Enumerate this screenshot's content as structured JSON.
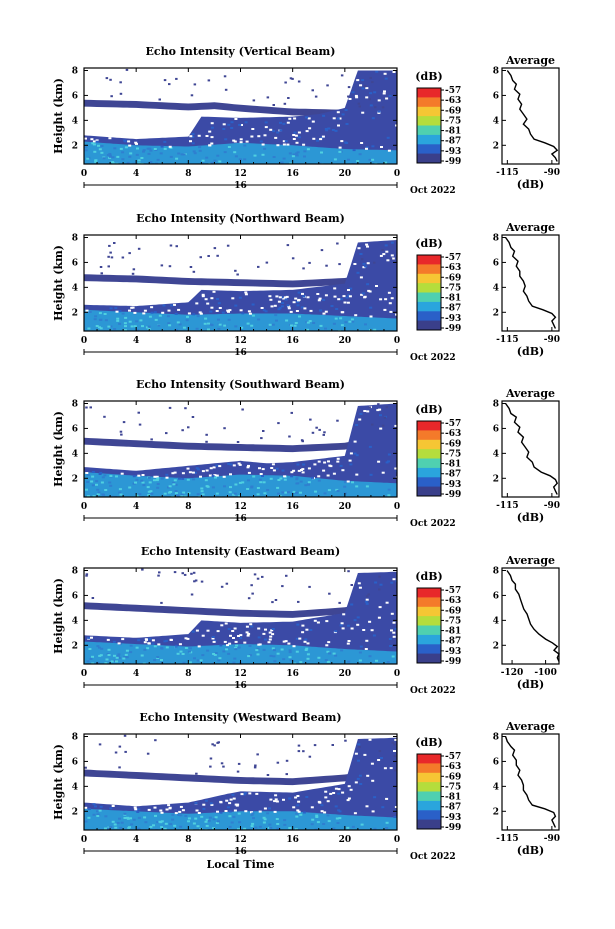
{
  "chart_data": [
    {
      "type": "heatmap",
      "title": "Echo Intensity (Vertical Beam)",
      "ylabel": "Height (km)",
      "xlabel": "",
      "x_ticks": [
        "0",
        "4",
        "8",
        "12",
        "16",
        "20",
        "0"
      ],
      "y_ticks": [
        "2",
        "4",
        "6",
        "8"
      ],
      "x_range": [
        0,
        24
      ],
      "y_range": [
        0.5,
        8.2
      ],
      "date_day": "16",
      "date_month": "Oct 2022",
      "colorbar": {
        "unit": "(dB)",
        "ticks": [
          "-57",
          "-63",
          "-69",
          "-75",
          "-81",
          "-87",
          "-93",
          "-99"
        ]
      },
      "layers": {
        "stratus_top": [
          [
            0,
            5.4
          ],
          [
            4,
            5.3
          ],
          [
            8,
            5.1
          ],
          [
            10,
            5.2
          ],
          [
            12,
            5.0
          ],
          [
            16,
            4.7
          ],
          [
            20,
            4.6
          ],
          [
            22,
            4.7
          ],
          [
            24,
            4.5
          ]
        ],
        "blob_top": [
          [
            0,
            2.8
          ],
          [
            4,
            2.5
          ],
          [
            8,
            2.7
          ],
          [
            9,
            4.3
          ],
          [
            12,
            4.2
          ],
          [
            16,
            4.3
          ],
          [
            18,
            4.5
          ],
          [
            20,
            5.0
          ],
          [
            21,
            8.0
          ],
          [
            24,
            8.0
          ]
        ],
        "bright_top": [
          [
            0,
            2.3
          ],
          [
            4,
            2.0
          ],
          [
            8,
            1.9
          ],
          [
            12,
            2.2
          ],
          [
            16,
            2.0
          ],
          [
            20,
            1.7
          ],
          [
            24,
            1.6
          ]
        ]
      },
      "average_profile": {
        "title": "Average",
        "xlabel": "(dB)",
        "x_ticks": [
          "-115",
          "-90"
        ],
        "xlim": [
          -118,
          -86
        ],
        "y_ticks": [
          "2",
          "4",
          "6",
          "8"
        ],
        "ylim": [
          0.5,
          8.2
        ],
        "heights": [
          8.0,
          7.6,
          7.2,
          6.9,
          6.5,
          6.1,
          5.7,
          5.3,
          4.9,
          4.5,
          4.1,
          3.7,
          3.3,
          2.9,
          2.5,
          2.2,
          1.9,
          1.6,
          1.3,
          1.0,
          0.7
        ],
        "values": [
          -115,
          -113,
          -112,
          -110,
          -111,
          -108,
          -109,
          -107,
          -108,
          -106,
          -104,
          -106,
          -103,
          -102,
          -100,
          -94,
          -89,
          -87,
          -90,
          -88,
          -87
        ]
      }
    },
    {
      "type": "heatmap",
      "title": "Echo Intensity (Northward Beam)",
      "ylabel": "Height (km)",
      "xlabel": "",
      "x_ticks": [
        "0",
        "4",
        "8",
        "12",
        "16",
        "20",
        "0"
      ],
      "y_ticks": [
        "2",
        "4",
        "6",
        "8"
      ],
      "x_range": [
        0,
        24
      ],
      "y_range": [
        0.5,
        8.2
      ],
      "date_day": "16",
      "date_month": "Oct 2022",
      "colorbar": {
        "unit": "(dB)",
        "ticks": [
          "-57",
          "-63",
          "-69",
          "-75",
          "-81",
          "-87",
          "-93",
          "-99"
        ]
      },
      "layers": {
        "stratus_top": [
          [
            0,
            4.8
          ],
          [
            4,
            4.7
          ],
          [
            8,
            4.5
          ],
          [
            12,
            4.4
          ],
          [
            16,
            4.3
          ],
          [
            20,
            4.5
          ],
          [
            22,
            4.9
          ],
          [
            24,
            4.4
          ]
        ],
        "blob_top": [
          [
            0,
            2.6
          ],
          [
            4,
            2.5
          ],
          [
            8,
            2.8
          ],
          [
            9,
            3.8
          ],
          [
            12,
            3.7
          ],
          [
            16,
            3.8
          ],
          [
            20,
            4.3
          ],
          [
            21,
            7.6
          ],
          [
            24,
            7.8
          ]
        ],
        "bright_top": [
          [
            0,
            2.2
          ],
          [
            4,
            2.0
          ],
          [
            8,
            1.8
          ],
          [
            12,
            1.9
          ],
          [
            16,
            1.9
          ],
          [
            20,
            1.7
          ],
          [
            24,
            1.5
          ]
        ]
      },
      "average_profile": {
        "title": "Average",
        "xlabel": "(dB)",
        "x_ticks": [
          "-115",
          "-90"
        ],
        "xlim": [
          -118,
          -86
        ],
        "y_ticks": [
          "2",
          "4",
          "6",
          "8"
        ],
        "ylim": [
          0.5,
          8.2
        ],
        "heights": [
          8.0,
          7.6,
          7.2,
          6.9,
          6.5,
          6.1,
          5.7,
          5.3,
          4.9,
          4.5,
          4.1,
          3.7,
          3.3,
          2.9,
          2.5,
          2.2,
          1.9,
          1.6,
          1.3,
          1.0,
          0.7
        ],
        "values": [
          -116,
          -114,
          -113,
          -111,
          -112,
          -109,
          -110,
          -108,
          -108,
          -106,
          -105,
          -106,
          -104,
          -103,
          -101,
          -95,
          -90,
          -88,
          -90,
          -89,
          -88
        ]
      }
    },
    {
      "type": "heatmap",
      "title": "Echo Intensity (Southward Beam)",
      "ylabel": "Height (km)",
      "xlabel": "",
      "x_ticks": [
        "0",
        "4",
        "8",
        "12",
        "16",
        "20",
        "0"
      ],
      "y_ticks": [
        "2",
        "4",
        "6",
        "8"
      ],
      "x_range": [
        0,
        24
      ],
      "y_range": [
        0.5,
        8.2
      ],
      "date_day": "16",
      "date_month": "Oct 2022",
      "colorbar": {
        "unit": "(dB)",
        "ticks": [
          "-57",
          "-63",
          "-69",
          "-75",
          "-81",
          "-87",
          "-93",
          "-99"
        ]
      },
      "layers": {
        "stratus_top": [
          [
            0,
            5.0
          ],
          [
            4,
            4.8
          ],
          [
            8,
            4.6
          ],
          [
            12,
            4.5
          ],
          [
            16,
            4.4
          ],
          [
            20,
            4.6
          ],
          [
            22,
            5.0
          ],
          [
            24,
            4.5
          ]
        ],
        "blob_top": [
          [
            0,
            2.9
          ],
          [
            4,
            2.6
          ],
          [
            8,
            3.0
          ],
          [
            12,
            3.4
          ],
          [
            14,
            3.2
          ],
          [
            16,
            3.3
          ],
          [
            20,
            3.8
          ],
          [
            21,
            7.8
          ],
          [
            24,
            8.0
          ]
        ],
        "bright_top": [
          [
            0,
            2.5
          ],
          [
            4,
            2.2
          ],
          [
            8,
            2.0
          ],
          [
            12,
            2.3
          ],
          [
            16,
            2.2
          ],
          [
            20,
            1.8
          ],
          [
            24,
            1.6
          ]
        ]
      },
      "average_profile": {
        "title": "Average",
        "xlabel": "(dB)",
        "x_ticks": [
          "-115",
          "-90"
        ],
        "xlim": [
          -118,
          -86
        ],
        "y_ticks": [
          "2",
          "4",
          "6",
          "8"
        ],
        "ylim": [
          0.5,
          8.2
        ],
        "heights": [
          8.0,
          7.6,
          7.2,
          6.9,
          6.5,
          6.1,
          5.7,
          5.3,
          4.9,
          4.5,
          4.1,
          3.7,
          3.3,
          2.9,
          2.5,
          2.2,
          1.9,
          1.6,
          1.3,
          1.0,
          0.7
        ],
        "values": [
          -116,
          -114,
          -113,
          -110,
          -111,
          -108,
          -109,
          -106,
          -107,
          -105,
          -103,
          -104,
          -101,
          -100,
          -96,
          -91,
          -88,
          -87,
          -89,
          -88,
          -87
        ]
      }
    },
    {
      "type": "heatmap",
      "title": "Echo Intensity (Eastward Beam)",
      "ylabel": "Height (km)",
      "xlabel": "",
      "x_ticks": [
        "0",
        "4",
        "8",
        "12",
        "16",
        "20",
        "0"
      ],
      "y_ticks": [
        "2",
        "4",
        "6",
        "8"
      ],
      "x_range": [
        0,
        24
      ],
      "y_range": [
        0.5,
        8.2
      ],
      "date_day": "16",
      "date_month": "Oct 2022",
      "colorbar": {
        "unit": "(dB)",
        "ticks": [
          "-57",
          "-63",
          "-69",
          "-75",
          "-81",
          "-87",
          "-93",
          "-99"
        ]
      },
      "layers": {
        "stratus_top": [
          [
            0,
            5.2
          ],
          [
            4,
            5.0
          ],
          [
            8,
            4.8
          ],
          [
            12,
            4.6
          ],
          [
            16,
            4.5
          ],
          [
            20,
            4.8
          ],
          [
            22,
            5.1
          ],
          [
            24,
            4.6
          ]
        ],
        "blob_top": [
          [
            0,
            2.8
          ],
          [
            4,
            2.6
          ],
          [
            8,
            2.9
          ],
          [
            9,
            4.0
          ],
          [
            12,
            3.8
          ],
          [
            16,
            3.9
          ],
          [
            20,
            4.6
          ],
          [
            21,
            7.8
          ],
          [
            24,
            7.9
          ]
        ],
        "bright_top": [
          [
            0,
            2.3
          ],
          [
            4,
            2.1
          ],
          [
            8,
            1.9
          ],
          [
            12,
            2.1
          ],
          [
            16,
            2.0
          ],
          [
            20,
            1.7
          ],
          [
            24,
            1.5
          ]
        ]
      },
      "average_profile": {
        "title": "Average",
        "xlabel": "(dB)",
        "x_ticks": [
          "-120",
          "-100"
        ],
        "xlim": [
          -126,
          -92
        ],
        "y_ticks": [
          "2",
          "4",
          "6",
          "8"
        ],
        "ylim": [
          0.5,
          8.2
        ],
        "heights": [
          8.0,
          7.6,
          7.2,
          6.9,
          6.5,
          6.1,
          5.7,
          5.3,
          4.9,
          4.5,
          4.1,
          3.7,
          3.3,
          2.9,
          2.5,
          2.2,
          1.9,
          1.6,
          1.3,
          1.0,
          0.7
        ],
        "values": [
          -123,
          -121,
          -120,
          -118,
          -118,
          -116,
          -115,
          -114,
          -113,
          -111,
          -110,
          -109,
          -107,
          -104,
          -100,
          -96,
          -93,
          -95,
          -92,
          -93,
          -92
        ]
      }
    },
    {
      "type": "heatmap",
      "title": "Echo Intensity (Westward Beam)",
      "ylabel": "Height (km)",
      "xlabel": "Local Time",
      "x_ticks": [
        "0",
        "4",
        "8",
        "12",
        "16",
        "20",
        "0"
      ],
      "y_ticks": [
        "2",
        "4",
        "6",
        "8"
      ],
      "x_range": [
        0,
        24
      ],
      "y_range": [
        0.5,
        8.2
      ],
      "date_day": "16",
      "date_month": "Oct 2022",
      "colorbar": {
        "unit": "(dB)",
        "ticks": [
          "-57",
          "-63",
          "-69",
          "-75",
          "-81",
          "-87",
          "-93",
          "-99"
        ]
      },
      "layers": {
        "stratus_top": [
          [
            0,
            5.1
          ],
          [
            4,
            4.9
          ],
          [
            8,
            4.7
          ],
          [
            12,
            4.5
          ],
          [
            16,
            4.4
          ],
          [
            20,
            4.7
          ],
          [
            22,
            5.0
          ],
          [
            24,
            4.6
          ]
        ],
        "blob_top": [
          [
            0,
            2.7
          ],
          [
            4,
            2.4
          ],
          [
            8,
            2.7
          ],
          [
            11,
            3.4
          ],
          [
            12,
            3.6
          ],
          [
            16,
            3.5
          ],
          [
            20,
            4.2
          ],
          [
            21,
            7.8
          ],
          [
            24,
            7.9
          ]
        ],
        "bright_top": [
          [
            0,
            2.2
          ],
          [
            4,
            2.0
          ],
          [
            8,
            1.8
          ],
          [
            12,
            2.0
          ],
          [
            16,
            2.0
          ],
          [
            20,
            1.7
          ],
          [
            24,
            1.5
          ]
        ]
      },
      "average_profile": {
        "title": "Average",
        "xlabel": "(dB)",
        "x_ticks": [
          "-115",
          "-90"
        ],
        "xlim": [
          -118,
          -86
        ],
        "y_ticks": [
          "2",
          "4",
          "6",
          "8"
        ],
        "ylim": [
          0.5,
          8.2
        ],
        "heights": [
          8.0,
          7.6,
          7.2,
          6.9,
          6.5,
          6.1,
          5.7,
          5.3,
          4.9,
          4.5,
          4.1,
          3.7,
          3.3,
          2.9,
          2.5,
          2.2,
          1.9,
          1.6,
          1.3,
          1.0,
          0.7
        ],
        "values": [
          -116,
          -115,
          -113,
          -111,
          -112,
          -110,
          -110,
          -108,
          -109,
          -107,
          -106,
          -106,
          -104,
          -103,
          -101,
          -94,
          -89,
          -88,
          -90,
          -89,
          -88
        ]
      }
    }
  ],
  "colors": {
    "stratus": "#3f4694",
    "blob": "#3b4aa6",
    "bright": "#2aa5dd",
    "bright_core": "#4fd0e0",
    "colorbar_stops": [
      "#e8282a",
      "#f47a2a",
      "#f6c634",
      "#b5dd3c",
      "#4fd0b0",
      "#2aa5dd",
      "#2a60c8",
      "#3a3f8a"
    ]
  }
}
